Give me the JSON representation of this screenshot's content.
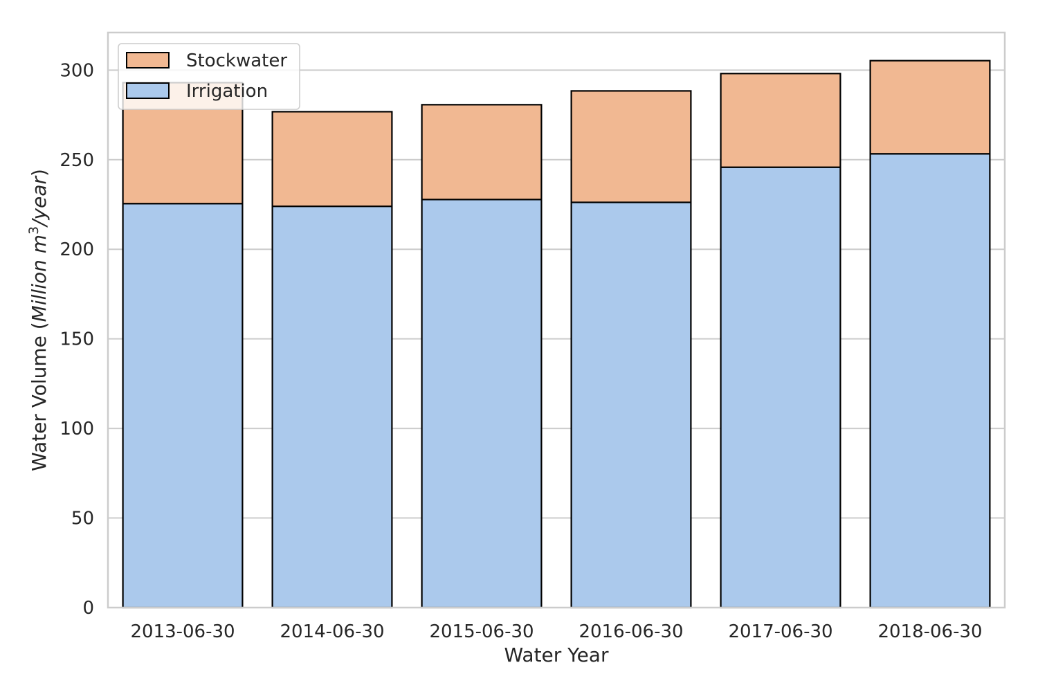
{
  "chart_data": {
    "type": "bar",
    "stacked": true,
    "categories": [
      "2013-06-30",
      "2014-06-30",
      "2015-06-30",
      "2016-06-30",
      "2017-06-30",
      "2018-06-30"
    ],
    "series": [
      {
        "name": "Irrigation",
        "values": [
          225.5,
          224.0,
          227.8,
          226.2,
          245.8,
          253.3
        ],
        "color": "#abc9ec"
      },
      {
        "name": "Stockwater",
        "values": [
          67.5,
          52.8,
          52.9,
          62.2,
          52.3,
          52.0
        ],
        "color": "#f1b892"
      }
    ],
    "xlabel": "Water Year",
    "ylabel_parts": {
      "prefix": "Water Volume (",
      "italic": "Million m",
      "sup": "3",
      "italic2": "/year",
      "suffix": ")"
    },
    "ylim": [
      0,
      321
    ],
    "yticks": [
      "0",
      "50",
      "100",
      "150",
      "200",
      "250",
      "300"
    ],
    "grid": true,
    "legend_position": "top-left",
    "legend": [
      "Stockwater",
      "Irrigation"
    ]
  }
}
